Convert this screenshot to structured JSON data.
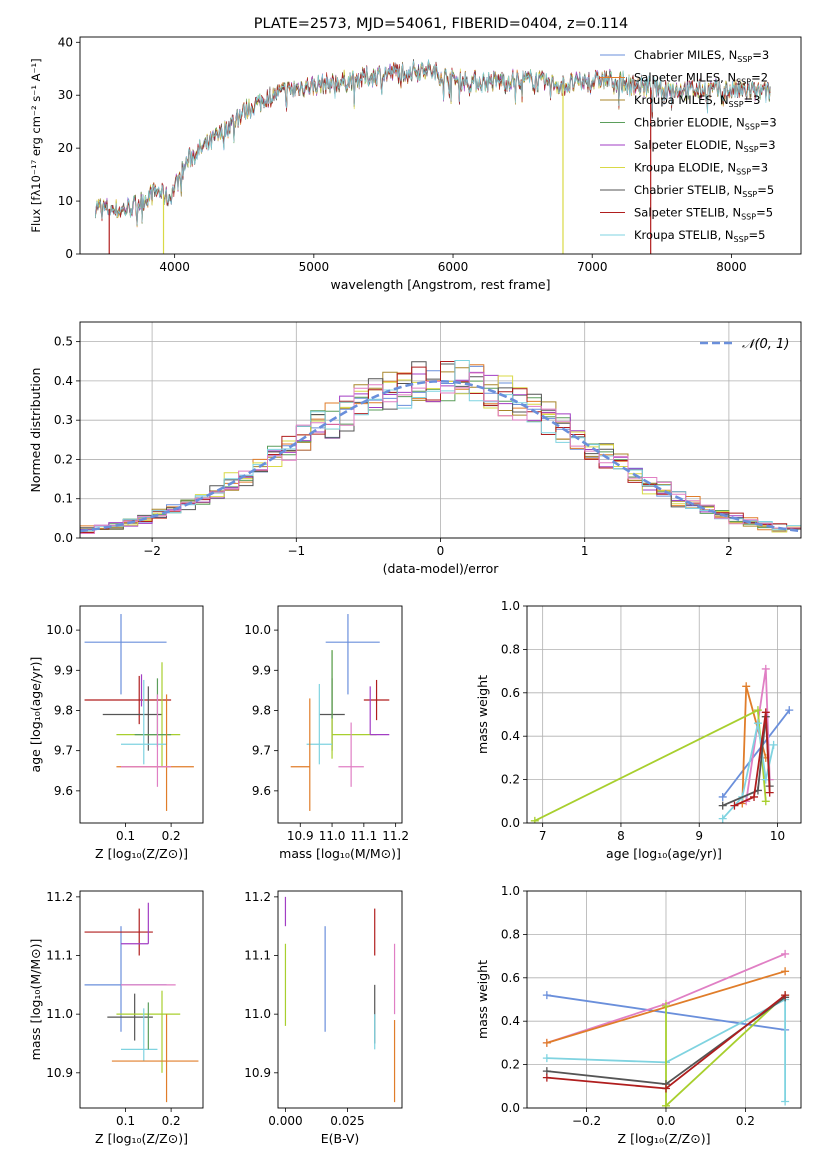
{
  "figure_title": "PLATE=2573, MJD=54061, FIBERID=0404, z=0.114",
  "colors": {
    "c_miles": "#6a8fdb",
    "s_miles": "#e07d2a",
    "k_miles": "#a8862a",
    "c_elodie": "#5b9e5b",
    "s_elodie": "#a23ec4",
    "k_elodie": "#d9d946",
    "c_stelib": "#555555",
    "s_stelib": "#b01e1e",
    "k_stelib": "#7fd3e0",
    "pink": "#e07fc4",
    "lime": "#a8cf2e"
  },
  "chart_data": [
    {
      "id": "spectrum",
      "type": "line",
      "xlabel": "wavelength [Angstrom, rest frame]",
      "ylabel": "Flux [fλ10⁻¹⁷ erg cm⁻² s⁻¹ A⁻¹]",
      "xlim": [
        3320,
        8500
      ],
      "ylim": [
        0,
        41
      ],
      "xticks": [
        4000,
        5000,
        6000,
        7000,
        8000
      ],
      "yticks": [
        0,
        10,
        20,
        30,
        40
      ],
      "grid": false,
      "legend_position": "right",
      "continuum": [
        [
          3430,
          9
        ],
        [
          3600,
          8.2
        ],
        [
          3700,
          9
        ],
        [
          3880,
          12
        ],
        [
          3960,
          10.5
        ],
        [
          4100,
          18
        ],
        [
          4300,
          22
        ],
        [
          4500,
          27
        ],
        [
          4700,
          30
        ],
        [
          4900,
          31.5
        ],
        [
          5200,
          32.5
        ],
        [
          5500,
          34
        ],
        [
          5800,
          35
        ],
        [
          6000,
          33
        ],
        [
          6200,
          32.5
        ],
        [
          6500,
          33
        ],
        [
          6800,
          32
        ],
        [
          7100,
          33
        ],
        [
          7400,
          31.5
        ],
        [
          7700,
          31
        ],
        [
          8000,
          31
        ],
        [
          8280,
          30.5
        ]
      ],
      "series": [
        {
          "label": "Chabrier MILES, N",
          "sub": "SSP",
          "suffix": "=3",
          "color_key": "c_miles"
        },
        {
          "label": "Salpeter MILES, N",
          "sub": "SSP",
          "suffix": "=2",
          "color_key": "s_miles"
        },
        {
          "label": "Kroupa MILES, N",
          "sub": "SSP",
          "suffix": "=3",
          "color_key": "k_miles"
        },
        {
          "label": "Chabrier ELODIE, N",
          "sub": "SSP",
          "suffix": "=3",
          "color_key": "c_elodie"
        },
        {
          "label": "Salpeter ELODIE, N",
          "sub": "SSP",
          "suffix": "=3",
          "color_key": "s_elodie"
        },
        {
          "label": "Kroupa ELODIE, N",
          "sub": "SSP",
          "suffix": "=3",
          "color_key": "k_elodie"
        },
        {
          "label": "Chabrier STELIB, N",
          "sub": "SSP",
          "suffix": "=5",
          "color_key": "c_stelib"
        },
        {
          "label": "Salpeter STELIB, N",
          "sub": "SSP",
          "suffix": "=5",
          "color_key": "s_stelib"
        },
        {
          "label": "Kroupa STELIB, N",
          "sub": "SSP",
          "suffix": "=5",
          "color_key": "k_stelib"
        }
      ],
      "drops": [
        {
          "x": 3530,
          "color_key": "s_stelib"
        },
        {
          "x": 3920,
          "color_key": "k_elodie"
        },
        {
          "x": 6790,
          "color_key": "k_elodie"
        },
        {
          "x": 7420,
          "color_key": "s_stelib"
        }
      ]
    },
    {
      "id": "residuals",
      "type": "histogram",
      "xlabel": "(data-model)/error",
      "ylabel": "Normed distribution",
      "xlim": [
        -2.5,
        2.5
      ],
      "ylim": [
        0,
        0.55
      ],
      "xticks": [
        -2,
        -1,
        0,
        1,
        2
      ],
      "xticklabels": [
        "−2",
        "−1",
        "0",
        "1",
        "2"
      ],
      "yticks": [
        0.0,
        0.1,
        0.2,
        0.3,
        0.4,
        0.5
      ],
      "yticklabels": [
        "0.0",
        "0.1",
        "0.2",
        "0.3",
        "0.4",
        "0.5"
      ],
      "grid": true,
      "legend_position": "top-right",
      "reference_curve": {
        "label": "𝒩(0, 1)",
        "mean": 0,
        "sigma": 1,
        "color_key": "c_miles"
      },
      "bin_width": 0.1,
      "series_colors": [
        "c_miles",
        "s_miles",
        "k_miles",
        "c_elodie",
        "s_elodie",
        "k_elodie",
        "c_stelib",
        "s_stelib",
        "k_stelib",
        "pink"
      ]
    },
    {
      "id": "age_vs_Z",
      "type": "errorbar",
      "xlabel": "Z [log₁₀(Z/Z⊙)]",
      "ylabel": "age  [log₁₀(age/yr)]",
      "xlim": [
        0.0,
        0.27
      ],
      "ylim": [
        9.52,
        10.06
      ],
      "xticks": [
        0.1,
        0.2
      ],
      "xticklabels": [
        "0.1",
        "0.2"
      ],
      "yticks": [
        9.6,
        9.7,
        9.8,
        9.9,
        10.0
      ],
      "yticklabels": [
        "9.6",
        "9.7",
        "9.8",
        "9.9",
        "10.0"
      ],
      "grid": false,
      "points": [
        {
          "x": 0.09,
          "y": 9.97,
          "xerr": [
            0.08,
            0.1
          ],
          "yerr": [
            0.13,
            0.07
          ],
          "color_key": "c_miles"
        },
        {
          "x": 0.13,
          "y": 9.826,
          "xerr": [
            0.12,
            0.07
          ],
          "yerr": [
            0.06,
            0.06
          ],
          "color_key": "s_stelib"
        },
        {
          "x": 0.15,
          "y": 9.79,
          "xerr": [
            0.1,
            0.03
          ],
          "yerr": [
            0.09,
            0.07
          ],
          "color_key": "c_stelib"
        },
        {
          "x": 0.18,
          "y": 9.74,
          "xerr": [
            0.1,
            0.04
          ],
          "yerr": [
            0.08,
            0.18
          ],
          "color_key": "lime"
        },
        {
          "x": 0.17,
          "y": 9.74,
          "xerr": [
            0.05,
            0.03
          ],
          "yerr": [
            0.03,
            0.14
          ],
          "color_key": "c_elodie"
        },
        {
          "x": 0.14,
          "y": 9.716,
          "xerr": [
            0.05,
            0.05
          ],
          "yerr": [
            0.05,
            0.16
          ],
          "color_key": "k_stelib"
        },
        {
          "x": 0.19,
          "y": 9.66,
          "xerr": [
            0.11,
            0.06
          ],
          "yerr": [
            0.11,
            0.18
          ],
          "color_key": "s_miles"
        },
        {
          "x": 0.17,
          "y": 9.66,
          "xerr": [
            0.08,
            0.03
          ],
          "yerr": [
            0.05,
            0.18
          ],
          "color_key": "pink"
        },
        {
          "x": 0.135,
          "y": 9.85,
          "xerr": [
            0.0,
            0.0
          ],
          "yerr": [
            0.04,
            0.04
          ],
          "color_key": "s_elodie"
        }
      ]
    },
    {
      "id": "age_vs_mass",
      "type": "errorbar",
      "xlabel": "mass [log₁₀(M/M⊙)]",
      "ylabel": "",
      "xlim": [
        10.83,
        11.22
      ],
      "ylim": [
        9.52,
        10.06
      ],
      "xticks": [
        10.9,
        11.0,
        11.1,
        11.2
      ],
      "xticklabels": [
        "10.9",
        "11.0",
        "11.1",
        "11.2"
      ],
      "yticks": [
        9.6,
        9.7,
        9.8,
        9.9,
        10.0
      ],
      "yticklabels": [
        "9.6",
        "9.7",
        "9.8",
        "9.9",
        "10.0"
      ],
      "grid": false,
      "points": [
        {
          "x": 11.05,
          "y": 9.97,
          "xerr": [
            0.07,
            0.1
          ],
          "yerr": [
            0.13,
            0.07
          ],
          "color_key": "c_miles"
        },
        {
          "x": 11.14,
          "y": 9.826,
          "xerr": [
            0.04,
            0.04
          ],
          "yerr": [
            0.05,
            0.05
          ],
          "color_key": "s_stelib"
        },
        {
          "x": 11.0,
          "y": 9.79,
          "xerr": [
            0.04,
            0.04
          ],
          "yerr": [
            0.09,
            0.09
          ],
          "color_key": "c_stelib"
        },
        {
          "x": 11.0,
          "y": 9.74,
          "xerr": [
            0.0,
            0.14
          ],
          "yerr": [
            0.06,
            0.21
          ],
          "color_key": "lime"
        },
        {
          "x": 11.12,
          "y": 9.74,
          "xerr": [
            0.0,
            0.06
          ],
          "yerr": [
            0.0,
            0.12
          ],
          "color_key": "s_elodie"
        },
        {
          "x": 10.96,
          "y": 9.716,
          "xerr": [
            0.04,
            0.04
          ],
          "yerr": [
            0.05,
            0.15
          ],
          "color_key": "k_stelib"
        },
        {
          "x": 10.93,
          "y": 9.66,
          "xerr": [
            0.06,
            0.0
          ],
          "yerr": [
            0.11,
            0.17
          ],
          "color_key": "s_miles"
        },
        {
          "x": 11.06,
          "y": 9.66,
          "xerr": [
            0.04,
            0.04
          ],
          "yerr": [
            0.05,
            0.11
          ],
          "color_key": "pink"
        },
        {
          "x": 11.0,
          "y": 9.85,
          "xerr": [
            0.0,
            0.0
          ],
          "yerr": [
            0.07,
            0.1
          ],
          "color_key": "c_elodie"
        }
      ]
    },
    {
      "id": "massweight_vs_age",
      "type": "line",
      "xlabel": "age  [log₁₀(age/yr)]",
      "ylabel": "mass weight",
      "xlim": [
        6.8,
        10.3
      ],
      "ylim": [
        0,
        1.0
      ],
      "xticks": [
        7,
        8,
        9,
        10
      ],
      "xticklabels": [
        "7",
        "8",
        "9",
        "10"
      ],
      "yticks": [
        0.0,
        0.2,
        0.4,
        0.6,
        0.8,
        1.0
      ],
      "yticklabels": [
        "0.0",
        "0.2",
        "0.4",
        "0.6",
        "0.8",
        "1.0"
      ],
      "grid": true,
      "series": [
        {
          "color_key": "c_miles",
          "x": [
            9.3,
            10.15
          ],
          "y": [
            0.12,
            0.52
          ]
        },
        {
          "color_key": "s_miles",
          "x": [
            9.55,
            9.6,
            9.85
          ],
          "y": [
            0.09,
            0.63,
            0.3
          ]
        },
        {
          "color_key": "pink",
          "x": [
            9.6,
            9.85,
            9.9
          ],
          "y": [
            0.1,
            0.71,
            0.2
          ]
        },
        {
          "color_key": "lime",
          "x": [
            6.9,
            9.75,
            9.85
          ],
          "y": [
            0.01,
            0.52,
            0.1
          ]
        },
        {
          "color_key": "k_stelib",
          "x": [
            9.3,
            9.55,
            9.75,
            9.85,
            9.95
          ],
          "y": [
            0.02,
            0.12,
            0.46,
            0.2,
            0.36
          ]
        },
        {
          "color_key": "c_stelib",
          "x": [
            9.3,
            9.75,
            9.85,
            9.9
          ],
          "y": [
            0.08,
            0.15,
            0.49,
            0.17
          ]
        },
        {
          "color_key": "s_stelib",
          "x": [
            9.45,
            9.7,
            9.85,
            9.9
          ],
          "y": [
            0.08,
            0.12,
            0.51,
            0.14
          ]
        }
      ]
    },
    {
      "id": "mass_vs_Z",
      "type": "errorbar",
      "xlabel": "Z [log₁₀(Z/Z⊙)]",
      "ylabel": "mass [log₁₀(M/M⊙)]",
      "xlim": [
        0.0,
        0.27
      ],
      "ylim": [
        10.84,
        11.21
      ],
      "xticks": [
        0.1,
        0.2
      ],
      "xticklabels": [
        "0.1",
        "0.2"
      ],
      "yticks": [
        10.9,
        11.0,
        11.1,
        11.2
      ],
      "yticklabels": [
        "10.9",
        "11.0",
        "11.1",
        "11.2"
      ],
      "grid": false,
      "points": [
        {
          "x": 0.09,
          "y": 11.05,
          "xerr": [
            0.08,
            0.1
          ],
          "yerr": [
            0.08,
            0.1
          ],
          "color_key": "c_miles"
        },
        {
          "x": 0.13,
          "y": 11.14,
          "xerr": [
            0.12,
            0.03
          ],
          "yerr": [
            0.04,
            0.04
          ],
          "color_key": "s_stelib"
        },
        {
          "x": 0.15,
          "y": 11.12,
          "xerr": [
            0.06,
            0.0
          ],
          "yerr": [
            0.0,
            0.07
          ],
          "color_key": "s_elodie"
        },
        {
          "x": 0.12,
          "y": 10.995,
          "xerr": [
            0.06,
            0.04
          ],
          "yerr": [
            0.04,
            0.04
          ],
          "color_key": "c_stelib"
        },
        {
          "x": 0.18,
          "y": 11.0,
          "xerr": [
            0.1,
            0.04
          ],
          "yerr": [
            0.1,
            0.04
          ],
          "color_key": "lime"
        },
        {
          "x": 0.14,
          "y": 10.94,
          "xerr": [
            0.05,
            0.03
          ],
          "yerr": [
            0.02,
            0.07
          ],
          "color_key": "k_stelib"
        },
        {
          "x": 0.19,
          "y": 10.92,
          "xerr": [
            0.12,
            0.07
          ],
          "yerr": [
            0.07,
            0.08
          ],
          "color_key": "s_miles"
        },
        {
          "x": 0.17,
          "y": 11.05,
          "xerr": [
            0.08,
            0.04
          ],
          "yerr": [
            0.0,
            0.0
          ],
          "color_key": "pink"
        },
        {
          "x": 0.15,
          "y": 10.98,
          "xerr": [
            0.0,
            0.0
          ],
          "yerr": [
            0.04,
            0.04
          ],
          "color_key": "c_elodie"
        }
      ]
    },
    {
      "id": "mass_vs_ebv",
      "type": "errorbar",
      "xlabel": "E(B-V)",
      "ylabel": "",
      "xlim": [
        -0.003,
        0.047
      ],
      "ylim": [
        10.84,
        11.21
      ],
      "xticks": [
        0.0,
        0.025
      ],
      "xticklabels": [
        "0.000",
        "0.025"
      ],
      "yticks": [
        10.9,
        11.0,
        11.1,
        11.2
      ],
      "yticklabels": [
        "10.9",
        "11.0",
        "11.1",
        "11.2"
      ],
      "grid": false,
      "points": [
        {
          "x": 0.0,
          "y": 11.15,
          "xerr": [
            0,
            0
          ],
          "yerr": [
            0.0,
            0.05
          ],
          "color_key": "s_elodie"
        },
        {
          "x": 0.0,
          "y": 11.05,
          "xerr": [
            0,
            0
          ],
          "yerr": [
            0.07,
            0.07
          ],
          "color_key": "lime"
        },
        {
          "x": 0.016,
          "y": 11.06,
          "xerr": [
            0,
            0
          ],
          "yerr": [
            0.09,
            0.09
          ],
          "color_key": "c_miles"
        },
        {
          "x": 0.036,
          "y": 11.14,
          "xerr": [
            0,
            0
          ],
          "yerr": [
            0.04,
            0.04
          ],
          "color_key": "s_stelib"
        },
        {
          "x": 0.036,
          "y": 11.0,
          "xerr": [
            0,
            0
          ],
          "yerr": [
            0.05,
            0.05
          ],
          "color_key": "c_stelib"
        },
        {
          "x": 0.036,
          "y": 10.97,
          "xerr": [
            0,
            0
          ],
          "yerr": [
            0.03,
            0.03
          ],
          "color_key": "k_stelib"
        },
        {
          "x": 0.044,
          "y": 11.06,
          "xerr": [
            0,
            0
          ],
          "yerr": [
            0.06,
            0.06
          ],
          "color_key": "pink"
        },
        {
          "x": 0.044,
          "y": 10.92,
          "xerr": [
            0,
            0
          ],
          "yerr": [
            0.07,
            0.07
          ],
          "color_key": "s_miles"
        }
      ]
    },
    {
      "id": "massweight_vs_Z",
      "type": "line",
      "xlabel": "Z [log₁₀(Z/Z⊙)]",
      "ylabel": "mass weight",
      "xlim": [
        -0.35,
        0.34
      ],
      "ylim": [
        0,
        1.0
      ],
      "xticks": [
        -0.2,
        0.0,
        0.2
      ],
      "xticklabels": [
        "−0.2",
        "0.0",
        "0.2"
      ],
      "yticks": [
        0.0,
        0.2,
        0.4,
        0.6,
        0.8,
        1.0
      ],
      "yticklabels": [
        "0.0",
        "0.2",
        "0.4",
        "0.6",
        "0.8",
        "1.0"
      ],
      "grid": true,
      "series": [
        {
          "color_key": "c_miles",
          "x": [
            -0.3,
            0.3
          ],
          "y": [
            0.52,
            0.36
          ]
        },
        {
          "color_key": "pink",
          "x": [
            -0.3,
            0.0,
            0.3
          ],
          "y": [
            0.3,
            0.48,
            0.71
          ]
        },
        {
          "color_key": "s_miles",
          "x": [
            -0.3,
            0.3
          ],
          "y": [
            0.3,
            0.63
          ]
        },
        {
          "color_key": "k_stelib",
          "x": [
            -0.3,
            0.0,
            0.3,
            0.3
          ],
          "y": [
            0.23,
            0.21,
            0.5,
            0.03
          ]
        },
        {
          "color_key": "lime",
          "x": [
            0.0,
            0.0,
            0.3
          ],
          "y": [
            0.47,
            0.01,
            0.52
          ]
        },
        {
          "color_key": "c_stelib",
          "x": [
            -0.3,
            0.0,
            0.3
          ],
          "y": [
            0.17,
            0.11,
            0.51
          ]
        },
        {
          "color_key": "s_stelib",
          "x": [
            -0.3,
            0.0,
            0.3
          ],
          "y": [
            0.14,
            0.09,
            0.52
          ]
        }
      ]
    }
  ]
}
